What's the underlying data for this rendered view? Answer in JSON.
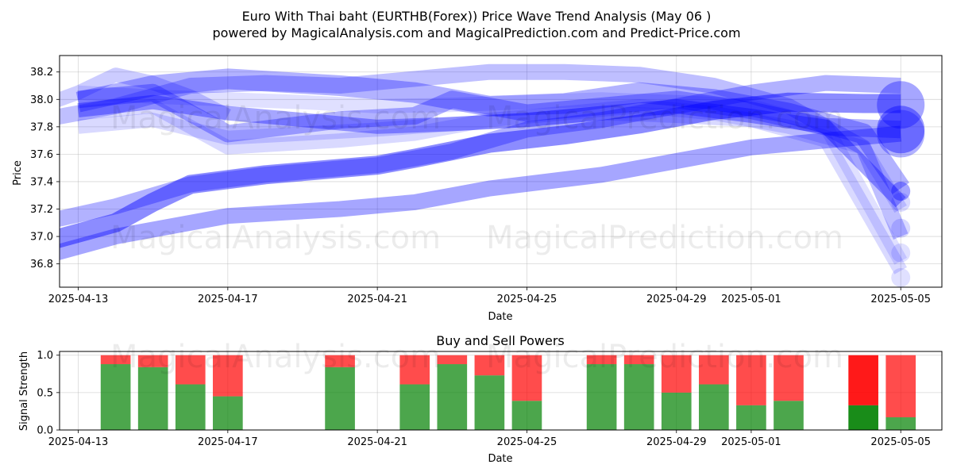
{
  "title_line1": "Euro With Thai baht (EURTHB(Forex)) Price Wave Trend Analysis (May 06 )",
  "title_line2": "powered by MagicalAnalysis.com and MagicalPrediction.com and Predict-Price.com",
  "watermark_left": "MagicalAnalysis.com",
  "watermark_right": "MagicalPrediction.com",
  "chart_data": [
    {
      "type": "line",
      "title": "",
      "xlabel": "Date",
      "ylabel": "Price",
      "xlim": [
        "2025-04-12.5",
        "2025-05-06.1"
      ],
      "ylim": [
        36.63,
        38.32
      ],
      "xticks": [
        "2025-04-13",
        "2025-04-17",
        "2025-04-21",
        "2025-04-25",
        "2025-04-29",
        "2025-05-01",
        "2025-05-05"
      ],
      "yticks": [
        36.8,
        37.0,
        37.2,
        37.4,
        37.6,
        37.8,
        38.0,
        38.2
      ],
      "grid": true,
      "color": "#0000ff",
      "series": [
        {
          "x": [
            "2025-04-12",
            "2025-04-14",
            "2025-04-15",
            "2025-04-16",
            "2025-04-18",
            "2025-04-21",
            "2025-04-22",
            "2025-04-24",
            "2025-04-26",
            "2025-04-28",
            "2025-04-30",
            "2025-05-02",
            "2025-05-04",
            "2025-05-05"
          ],
          "y": [
            36.95,
            37.1,
            37.25,
            37.38,
            37.45,
            37.52,
            37.57,
            37.68,
            37.74,
            37.82,
            37.92,
            37.98,
            37.97,
            37.97
          ],
          "alpha": 0.45,
          "width": 24
        },
        {
          "x": [
            "2025-04-12",
            "2025-04-14",
            "2025-04-16",
            "2025-04-18",
            "2025-04-21",
            "2025-04-23",
            "2025-04-25",
            "2025-04-27",
            "2025-04-29",
            "2025-05-01",
            "2025-05-03",
            "2025-05-05"
          ],
          "y": [
            37.1,
            37.22,
            37.38,
            37.45,
            37.52,
            37.62,
            37.78,
            37.85,
            37.95,
            38.05,
            38.12,
            38.1
          ],
          "alpha": 0.3,
          "width": 20
        },
        {
          "x": [
            "2025-04-12",
            "2025-04-14",
            "2025-04-15",
            "2025-04-17",
            "2025-04-20",
            "2025-04-22",
            "2025-04-24",
            "2025-04-27",
            "2025-04-29",
            "2025-05-01",
            "2025-05-03",
            "2025-05-05"
          ],
          "y": [
            36.85,
            37.0,
            37.05,
            37.15,
            37.2,
            37.25,
            37.35,
            37.45,
            37.55,
            37.65,
            37.7,
            37.75
          ],
          "alpha": 0.35,
          "width": 20
        },
        {
          "x": [
            "2025-04-13",
            "2025-04-15",
            "2025-04-17",
            "2025-04-20",
            "2025-04-22",
            "2025-04-24",
            "2025-04-26",
            "2025-04-28",
            "2025-04-30",
            "2025-05-02",
            "2025-05-04",
            "2025-05-05"
          ],
          "y": [
            37.98,
            38.1,
            38.15,
            38.1,
            38.05,
            37.95,
            37.97,
            38.05,
            38.0,
            37.9,
            37.75,
            37.35
          ],
          "alpha": 0.3,
          "width": 26
        },
        {
          "x": [
            "2025-04-13",
            "2025-04-15",
            "2025-04-17",
            "2025-04-20",
            "2025-04-22",
            "2025-04-23",
            "2025-04-25",
            "2025-04-27",
            "2025-04-29",
            "2025-05-01",
            "2025-05-03",
            "2025-05-05"
          ],
          "y": [
            38.0,
            38.05,
            37.75,
            37.85,
            37.88,
            38.0,
            37.9,
            37.95,
            38.0,
            37.92,
            37.8,
            37.78
          ],
          "alpha": 0.3,
          "width": 22
        },
        {
          "x": [
            "2025-04-13",
            "2025-04-15",
            "2025-04-17",
            "2025-04-19",
            "2025-04-21",
            "2025-04-23",
            "2025-04-25",
            "2025-04-27",
            "2025-04-29",
            "2025-05-01",
            "2025-05-03",
            "2025-05-05"
          ],
          "y": [
            37.92,
            37.98,
            37.9,
            37.85,
            37.8,
            37.82,
            37.85,
            37.9,
            37.95,
            37.88,
            37.8,
            37.25
          ],
          "alpha": 0.35,
          "width": 18
        },
        {
          "x": [
            "2025-04-12",
            "2025-04-14",
            "2025-04-16",
            "2025-04-18",
            "2025-04-20",
            "2025-04-22",
            "2025-04-24",
            "2025-04-26",
            "2025-04-28",
            "2025-04-30",
            "2025-05-02",
            "2025-05-04",
            "2025-05-05"
          ],
          "y": [
            37.85,
            37.95,
            38.1,
            38.12,
            38.1,
            38.15,
            38.2,
            38.2,
            38.18,
            38.1,
            37.95,
            37.65,
            37.0
          ],
          "alpha": 0.25,
          "width": 20
        },
        {
          "x": [
            "2025-04-13",
            "2025-04-15",
            "2025-04-17",
            "2025-04-19",
            "2025-04-21",
            "2025-04-23",
            "2025-04-25",
            "2025-04-27",
            "2025-04-29",
            "2025-05-01",
            "2025-05-03",
            "2025-05-05"
          ],
          "y": [
            37.8,
            37.85,
            37.72,
            37.75,
            37.78,
            37.82,
            37.85,
            37.9,
            37.88,
            37.85,
            37.7,
            36.75
          ],
          "alpha": 0.15,
          "width": 18
        },
        {
          "x": [
            "2025-04-13",
            "2025-04-15",
            "2025-04-17",
            "2025-04-20",
            "2025-04-22",
            "2025-04-24",
            "2025-04-26",
            "2025-04-28",
            "2025-04-30",
            "2025-05-02",
            "2025-05-04",
            "2025-05-05"
          ],
          "y": [
            37.9,
            37.95,
            37.65,
            37.7,
            37.75,
            37.85,
            37.9,
            37.95,
            37.9,
            37.8,
            37.65,
            37.2
          ],
          "alpha": 0.15,
          "width": 18
        },
        {
          "x": [
            "2025-04-13",
            "2025-04-15",
            "2025-04-17",
            "2025-04-19",
            "2025-04-21",
            "2025-04-23",
            "2025-04-25",
            "2025-04-27",
            "2025-04-29",
            "2025-05-01",
            "2025-05-03",
            "2025-05-05"
          ],
          "y": [
            38.05,
            38.02,
            38.0,
            37.98,
            37.95,
            37.96,
            37.98,
            38.0,
            37.98,
            37.95,
            37.8,
            36.82
          ],
          "alpha": 0.12,
          "width": 18
        },
        {
          "x": [
            "2025-04-12",
            "2025-04-13",
            "2025-04-14",
            "2025-04-15",
            "2025-04-16",
            "2025-04-17"
          ],
          "y": [
            37.95,
            38.05,
            38.18,
            38.12,
            38.02,
            37.88
          ],
          "alpha": 0.2,
          "width": 18
        }
      ],
      "end_markers": [
        {
          "x": "2025-05-05",
          "y": 37.96,
          "size": 30,
          "alpha": 0.35
        },
        {
          "x": "2025-05-05",
          "y": 37.78,
          "size": 30,
          "alpha": 0.4
        },
        {
          "x": "2025-05-05",
          "y": 37.75,
          "size": 30,
          "alpha": 0.3
        },
        {
          "x": "2025-05-05",
          "y": 37.33,
          "size": 12,
          "alpha": 0.35
        },
        {
          "x": "2025-05-05",
          "y": 37.25,
          "size": 12,
          "alpha": 0.15
        },
        {
          "x": "2025-05-05",
          "y": 37.06,
          "size": 12,
          "alpha": 0.15
        },
        {
          "x": "2025-05-05",
          "y": 36.88,
          "size": 12,
          "alpha": 0.12
        },
        {
          "x": "2025-05-05",
          "y": 36.7,
          "size": 12,
          "alpha": 0.12
        }
      ]
    },
    {
      "type": "bar",
      "title": "Buy and Sell Powers",
      "xlabel": "Date",
      "ylabel": "Signal Strength",
      "xlim": [
        "2025-04-12.5",
        "2025-05-06.1"
      ],
      "ylim": [
        0,
        1.05
      ],
      "xticks": [
        "2025-04-13",
        "2025-04-17",
        "2025-04-21",
        "2025-04-25",
        "2025-04-29",
        "2025-05-01",
        "2025-05-05"
      ],
      "yticks": [
        0.0,
        0.5,
        1.0
      ],
      "grid": true,
      "buy_color": "#008000",
      "sell_color": "#ff0000",
      "dates": [
        "2025-04-14",
        "2025-04-15",
        "2025-04-16",
        "2025-04-17",
        "2025-04-20",
        "2025-04-22",
        "2025-04-23",
        "2025-04-24",
        "2025-04-25",
        "2025-04-27",
        "2025-04-28",
        "2025-04-29",
        "2025-04-30",
        "2025-05-01",
        "2025-05-02",
        "2025-05-04",
        "2025-05-05"
      ],
      "buy": [
        0.88,
        0.84,
        0.61,
        0.45,
        0.84,
        0.61,
        0.88,
        0.73,
        0.39,
        0.88,
        0.88,
        0.5,
        0.61,
        0.33,
        0.39,
        0.33,
        0.17
      ],
      "sell": [
        0.12,
        0.16,
        0.39,
        0.55,
        0.16,
        0.39,
        0.12,
        0.27,
        0.61,
        0.12,
        0.12,
        0.5,
        0.39,
        0.67,
        0.61,
        0.67,
        0.83
      ],
      "bar_alpha": [
        0.7,
        0.7,
        0.7,
        0.7,
        0.7,
        0.7,
        0.7,
        0.7,
        0.7,
        0.7,
        0.7,
        0.7,
        0.7,
        0.7,
        0.7,
        0.9,
        0.7
      ]
    }
  ]
}
